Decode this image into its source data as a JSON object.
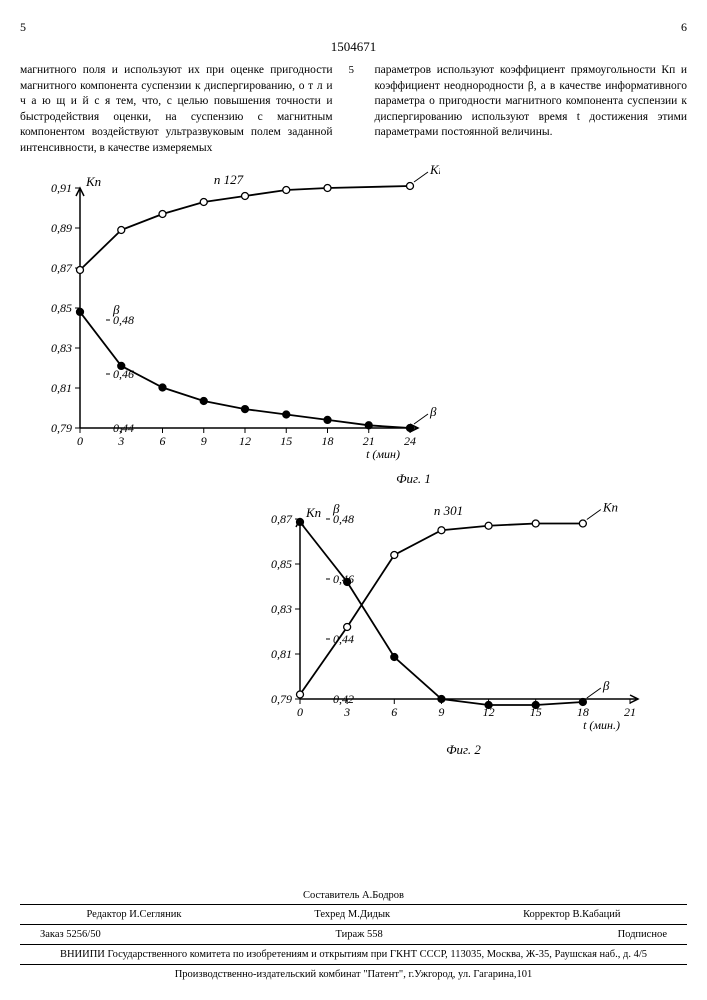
{
  "doc_number": "1504671",
  "page_left": "5",
  "page_right": "6",
  "col_left_text": "магнитного поля и используют их при оценке пригодности магнитного компонента суспензии к диспергированию, о т л и ч а ю щ и й с я тем, что, с целью повышения точности и быстродействия оценки, на суспензию с магнитным компонентом воздействуют ультразвуковым полем заданной интенсивности, в качестве измеряемых",
  "col_right_text": "параметров используют коэффициент прямоугольности Кп и коэффициент неоднородности β, а в качестве информативного параметра о пригодности магнитного компонента суспензии к диспергированию используют время t достижения этими параметрами постоянной величины.",
  "line_number_5": "5",
  "fig1": {
    "caption": "Фиг. 1",
    "title": "п 127",
    "xlabel": "t (мин)",
    "x_ticks": [
      0,
      3,
      6,
      9,
      12,
      15,
      18,
      21,
      24
    ],
    "kp_axis_label": "Кп",
    "kp_ticks": [
      0.79,
      0.81,
      0.83,
      0.85,
      0.87,
      0.89,
      0.91
    ],
    "beta_axis_label": "β",
    "beta_ticks": [
      0.44,
      0.46,
      0.48
    ],
    "series_kp": {
      "label": "Кп",
      "marker": "open-circle",
      "color": "#000000",
      "points": [
        {
          "x": 0,
          "y": 0.869
        },
        {
          "x": 3,
          "y": 0.889
        },
        {
          "x": 6,
          "y": 0.897
        },
        {
          "x": 9,
          "y": 0.903
        },
        {
          "x": 12,
          "y": 0.906
        },
        {
          "x": 15,
          "y": 0.909
        },
        {
          "x": 18,
          "y": 0.91
        },
        {
          "x": 24,
          "y": 0.911
        }
      ]
    },
    "series_beta": {
      "label": "β",
      "marker": "filled-circle",
      "color": "#000000",
      "points": [
        {
          "x": 0,
          "y": 0.483
        },
        {
          "x": 3,
          "y": 0.463
        },
        {
          "x": 6,
          "y": 0.455
        },
        {
          "x": 9,
          "y": 0.45
        },
        {
          "x": 12,
          "y": 0.447
        },
        {
          "x": 15,
          "y": 0.445
        },
        {
          "x": 18,
          "y": 0.443
        },
        {
          "x": 21,
          "y": 0.441
        },
        {
          "x": 24,
          "y": 0.44
        }
      ]
    },
    "line_width": 1.8,
    "marker_radius": 3.5,
    "axis_color": "#000000",
    "tick_fontsize": 12
  },
  "fig2": {
    "caption": "Фиг. 2",
    "title": "п 301",
    "xlabel": "t (мин.)",
    "x_ticks": [
      0,
      3,
      6,
      9,
      12,
      15,
      18,
      21
    ],
    "kp_axis_label": "Кп",
    "kp_ticks": [
      0.79,
      0.81,
      0.83,
      0.85,
      0.87
    ],
    "beta_axis_label": "β",
    "beta_ticks": [
      0.42,
      0.44,
      0.46,
      0.48
    ],
    "series_kp": {
      "label": "Кп",
      "marker": "open-circle",
      "color": "#000000",
      "points": [
        {
          "x": 0,
          "y": 0.792
        },
        {
          "x": 3,
          "y": 0.822
        },
        {
          "x": 6,
          "y": 0.854
        },
        {
          "x": 9,
          "y": 0.865
        },
        {
          "x": 12,
          "y": 0.867
        },
        {
          "x": 15,
          "y": 0.868
        },
        {
          "x": 18,
          "y": 0.868
        }
      ]
    },
    "series_beta": {
      "label": "β",
      "marker": "filled-circle",
      "color": "#000000",
      "points": [
        {
          "x": 0,
          "y": 0.479
        },
        {
          "x": 3,
          "y": 0.459
        },
        {
          "x": 6,
          "y": 0.434
        },
        {
          "x": 9,
          "y": 0.42
        },
        {
          "x": 12,
          "y": 0.418
        },
        {
          "x": 15,
          "y": 0.418
        },
        {
          "x": 18,
          "y": 0.419
        }
      ]
    },
    "line_width": 1.8,
    "marker_radius": 3.5,
    "axis_color": "#000000",
    "tick_fontsize": 12
  },
  "footer": {
    "compiler": "Составитель А.Бодров",
    "editor": "Редактор И.Сегляник",
    "techred": "Техред М.Дидык",
    "corrector": "Корректор В.Кабаций",
    "order": "Заказ 5256/50",
    "circulation": "Тираж 558",
    "subscription": "Подписное",
    "org": "ВНИИПИ Государственного комитета по изобретениям и открытиям при ГКНТ СССР, 113035, Москва, Ж-35, Раушская наб., д. 4/5",
    "printer": "Производственно-издательский комбинат \"Патент\", г.Ужгород, ул. Гагарина,101"
  }
}
